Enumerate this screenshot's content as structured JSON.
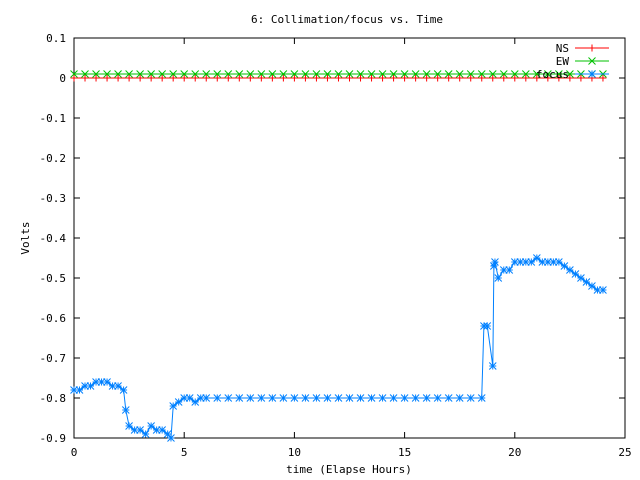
{
  "chart_data": {
    "type": "line",
    "title": "6: Collimation/focus vs. Time",
    "xlabel": "time (Elapse Hours)",
    "ylabel": "Volts",
    "xlim": [
      0,
      25
    ],
    "ylim": [
      -0.9,
      0.1
    ],
    "x_ticks": [
      0,
      5,
      10,
      15,
      20,
      25
    ],
    "x_tick_labels": [
      "0",
      "5",
      "10",
      "15",
      "20",
      "25"
    ],
    "y_ticks": [
      0.1,
      0,
      -0.1,
      -0.2,
      -0.3,
      -0.4,
      -0.5,
      -0.6,
      -0.7,
      -0.8,
      -0.9
    ],
    "y_tick_labels": [
      "0.1",
      "0",
      "-0.1",
      "-0.2",
      "-0.3",
      "-0.4",
      "-0.5",
      "-0.6",
      "-0.7",
      "-0.8",
      "-0.9"
    ],
    "grid": false,
    "legend_position": "top-right",
    "series": [
      {
        "name": "NS",
        "color": "#ff0000",
        "marker": "plus",
        "x": [
          0,
          0.5,
          1,
          1.5,
          2,
          2.5,
          3,
          3.5,
          4,
          4.5,
          5,
          5.5,
          6,
          6.5,
          7,
          7.5,
          8,
          8.5,
          9,
          9.5,
          10,
          10.5,
          11,
          11.5,
          12,
          12.5,
          13,
          13.5,
          14,
          14.5,
          15,
          15.5,
          16,
          16.5,
          17,
          17.5,
          18,
          18.5,
          19,
          19.5,
          20,
          20.5,
          21,
          21.5,
          22,
          22.5,
          23,
          23.5,
          24
        ],
        "y": [
          0,
          0,
          0,
          0,
          0,
          0,
          0,
          0,
          0,
          0,
          0,
          0,
          0,
          0,
          0,
          0,
          0,
          0,
          0,
          0,
          0,
          0,
          0,
          0,
          0,
          0,
          0,
          0,
          0,
          0,
          0,
          0,
          0,
          0,
          0,
          0,
          0,
          0,
          0,
          0,
          0,
          0,
          0,
          0,
          0,
          0,
          0,
          0,
          0
        ]
      },
      {
        "name": "EW",
        "color": "#00c000",
        "marker": "cross",
        "x": [
          0,
          0.5,
          1,
          1.5,
          2,
          2.5,
          3,
          3.5,
          4,
          4.5,
          5,
          5.5,
          6,
          6.5,
          7,
          7.5,
          8,
          8.5,
          9,
          9.5,
          10,
          10.5,
          11,
          11.5,
          12,
          12.5,
          13,
          13.5,
          14,
          14.5,
          15,
          15.5,
          16,
          16.5,
          17,
          17.5,
          18,
          18.5,
          19,
          19.5,
          20,
          20.5,
          21,
          21.5,
          22,
          22.5,
          23,
          23.5,
          24
        ],
        "y": [
          0.01,
          0.01,
          0.01,
          0.01,
          0.01,
          0.01,
          0.01,
          0.01,
          0.01,
          0.01,
          0.01,
          0.01,
          0.01,
          0.01,
          0.01,
          0.01,
          0.01,
          0.01,
          0.01,
          0.01,
          0.01,
          0.01,
          0.01,
          0.01,
          0.01,
          0.01,
          0.01,
          0.01,
          0.01,
          0.01,
          0.01,
          0.01,
          0.01,
          0.01,
          0.01,
          0.01,
          0.01,
          0.01,
          0.01,
          0.01,
          0.01,
          0.01,
          0.01,
          0.01,
          0.01,
          0.01,
          0.01,
          0.01,
          0.01
        ]
      },
      {
        "name": "focus",
        "color": "#0080ff",
        "marker": "star",
        "x": [
          0,
          0.25,
          0.5,
          0.75,
          1,
          1.25,
          1.5,
          1.75,
          2,
          2.25,
          2.35,
          2.5,
          2.75,
          3,
          3.25,
          3.5,
          3.75,
          4,
          4.25,
          4.4,
          4.5,
          4.75,
          5,
          5.25,
          5.5,
          5.75,
          6,
          6.5,
          7,
          7.5,
          8,
          8.5,
          9,
          9.5,
          10,
          10.5,
          11,
          11.5,
          12,
          12.5,
          13,
          13.5,
          14,
          14.5,
          15,
          15.5,
          16,
          16.5,
          17,
          17.5,
          18,
          18.5,
          18.6,
          18.75,
          19,
          19.05,
          19.1,
          19.25,
          19.5,
          19.75,
          20,
          20.25,
          20.5,
          20.75,
          21,
          21.25,
          21.5,
          21.75,
          22,
          22.25,
          22.5,
          22.75,
          23,
          23.25,
          23.5,
          23.75,
          24
        ],
        "y": [
          -0.78,
          -0.78,
          -0.77,
          -0.77,
          -0.76,
          -0.76,
          -0.76,
          -0.77,
          -0.77,
          -0.78,
          -0.83,
          -0.87,
          -0.88,
          -0.88,
          -0.89,
          -0.87,
          -0.88,
          -0.88,
          -0.89,
          -0.9,
          -0.82,
          -0.81,
          -0.8,
          -0.8,
          -0.81,
          -0.8,
          -0.8,
          -0.8,
          -0.8,
          -0.8,
          -0.8,
          -0.8,
          -0.8,
          -0.8,
          -0.8,
          -0.8,
          -0.8,
          -0.8,
          -0.8,
          -0.8,
          -0.8,
          -0.8,
          -0.8,
          -0.8,
          -0.8,
          -0.8,
          -0.8,
          -0.8,
          -0.8,
          -0.8,
          -0.8,
          -0.8,
          -0.62,
          -0.62,
          -0.72,
          -0.47,
          -0.46,
          -0.5,
          -0.48,
          -0.48,
          -0.46,
          -0.46,
          -0.46,
          -0.46,
          -0.45,
          -0.46,
          -0.46,
          -0.46,
          -0.46,
          -0.47,
          -0.48,
          -0.49,
          -0.5,
          -0.51,
          -0.52,
          -0.53,
          -0.53
        ]
      }
    ]
  }
}
